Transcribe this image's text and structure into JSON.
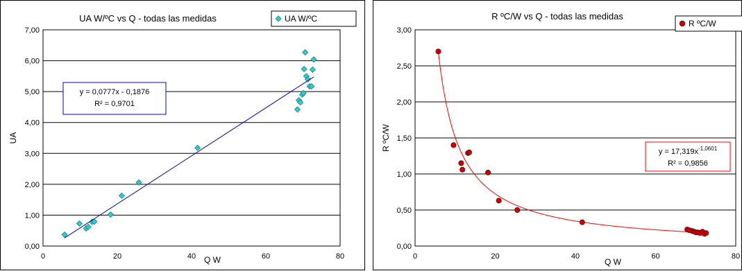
{
  "chart_data": [
    {
      "type": "scatter",
      "title": "UA W/ºC vs Q -  todas las medidas",
      "xlabel": "Q W",
      "ylabel": "UA",
      "xlim": [
        0,
        80
      ],
      "ylim": [
        0,
        7
      ],
      "x_ticks": [
        "0",
        "20",
        "40",
        "60",
        "80"
      ],
      "y_ticks": [
        "0,00",
        "1,00",
        "2,00",
        "3,00",
        "4,00",
        "5,00",
        "6,00",
        "7,00"
      ],
      "grid": "horizontal",
      "legend_position": "top-right",
      "series": [
        {
          "name": "UA W/ºC",
          "color": "#33cccc",
          "marker": "diamond",
          "x": [
            5.8,
            9.8,
            11.6,
            12.2,
            13.2,
            13.8,
            18.2,
            21.2,
            25.8,
            41.6,
            68.5,
            68.9,
            69.3,
            69.8,
            70.1,
            70.3,
            70.6,
            70.9,
            71.3,
            71.8,
            72.3,
            72.6,
            72.9
          ],
          "y": [
            0.37,
            0.73,
            0.57,
            0.62,
            0.78,
            0.79,
            1.02,
            1.63,
            2.06,
            3.18,
            4.42,
            4.72,
            4.65,
            4.9,
            4.95,
            5.73,
            6.27,
            5.5,
            5.4,
            5.17,
            5.17,
            5.71,
            6.04
          ]
        }
      ],
      "trendline": {
        "type": "linear",
        "slope": 0.0777,
        "intercept": -0.1876,
        "x_range": [
          5.8,
          72.9
        ],
        "color": "#0000cc",
        "equation_label": "y = 0,0777x - 0,1876",
        "r2_label": "R² = 0,9701"
      }
    },
    {
      "type": "scatter",
      "title": "R ºC/W vs Q -  todas las medidas",
      "xlabel": "Q W",
      "ylabel": "R ºC/W",
      "xlim": [
        0,
        80
      ],
      "ylim": [
        0,
        3
      ],
      "x_ticks": [
        "0",
        "20",
        "40",
        "60",
        "80"
      ],
      "y_ticks": [
        "0,00",
        "0,50",
        "1,00",
        "1,50",
        "2,00",
        "2,50",
        "3,00"
      ],
      "grid": "horizontal",
      "legend_position": "top-right",
      "series": [
        {
          "name": "R ºC/W",
          "color": "#cc0000",
          "marker": "circle",
          "x": [
            5.8,
            9.6,
            11.5,
            11.8,
            13.2,
            13.5,
            18.2,
            20.9,
            25.5,
            41.7,
            67.9,
            68.4,
            69.1,
            69.6,
            70.1,
            70.6,
            71.1,
            71.7,
            72.2,
            72.6
          ],
          "y": [
            2.7,
            1.4,
            1.15,
            1.06,
            1.29,
            1.3,
            1.02,
            0.63,
            0.5,
            0.33,
            0.23,
            0.22,
            0.21,
            0.2,
            0.19,
            0.19,
            0.18,
            0.2,
            0.17,
            0.18
          ]
        }
      ],
      "trendline": {
        "type": "power",
        "coefficient": 17.319,
        "exponent": -1.0601,
        "x_range": [
          5.8,
          72.6
        ],
        "color": "#ff0000",
        "equation_prefix": "y = 17,319x",
        "equation_exponent": "-1,0601",
        "r2_label": "R² = 0,9856"
      }
    }
  ]
}
